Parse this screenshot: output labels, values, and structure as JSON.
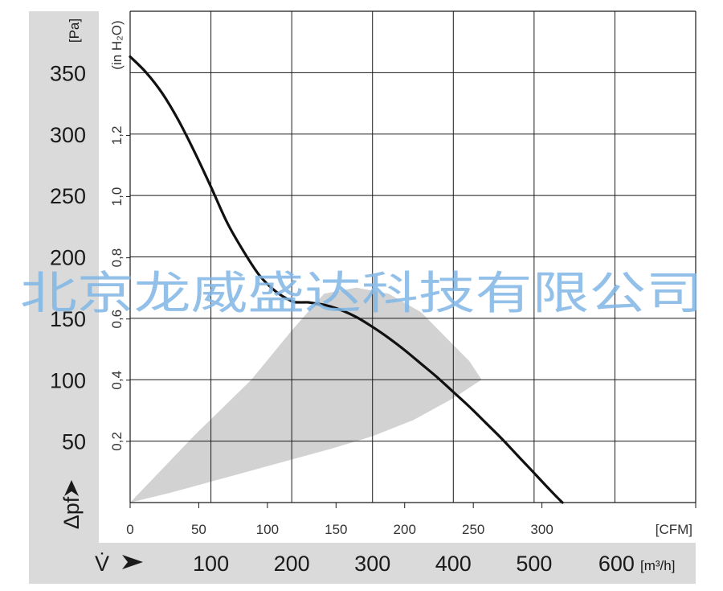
{
  "chart_data": {
    "type": "line",
    "x_axis_primary": {
      "unit": "[m³/h]",
      "ticks": [
        100,
        200,
        300,
        400,
        500,
        600
      ],
      "range": [
        0,
        700
      ]
    },
    "x_axis_secondary": {
      "unit": "[CFM]",
      "ticks": [
        0,
        50,
        100,
        150,
        200,
        250,
        300
      ]
    },
    "y_axis_primary": {
      "unit": "[Pa]",
      "ticks": [
        50,
        100,
        150,
        200,
        250,
        300,
        350
      ],
      "range": [
        0,
        400
      ]
    },
    "y_axis_secondary": {
      "unit": "(in H₂O)",
      "ticks": [
        "0,2",
        "0,4",
        "0,6",
        "0,8",
        "1,0",
        "1,2"
      ]
    },
    "ylabel": "Δpf",
    "xlabel": "V̇",
    "grid": true,
    "series": [
      {
        "x": [
          0,
          20,
          40,
          60,
          80,
          100,
          120,
          140,
          160,
          180,
          200,
          210,
          220,
          230,
          240,
          260,
          280,
          300,
          320,
          340,
          360,
          380,
          400,
          420,
          440,
          460,
          480,
          500,
          520,
          535
        ],
        "y": [
          363,
          350,
          333,
          311,
          285,
          257,
          228,
          205,
          185,
          172,
          164,
          163,
          163,
          162,
          161,
          157,
          151,
          143,
          134,
          124,
          113,
          102,
          90,
          78,
          65,
          52,
          38,
          24,
          10,
          0
        ]
      }
    ],
    "shaded_region": {
      "x": [
        0,
        80,
        150,
        200,
        240,
        280,
        320,
        360,
        390,
        420,
        435,
        400,
        350,
        300,
        250,
        200,
        150,
        100,
        50,
        0
      ],
      "y": [
        0,
        55,
        100,
        140,
        170,
        175,
        170,
        155,
        135,
        115,
        100,
        85,
        67,
        54,
        44,
        35,
        26,
        17,
        8,
        0
      ]
    }
  },
  "watermark": "北京龙威盛达科技有限公司"
}
